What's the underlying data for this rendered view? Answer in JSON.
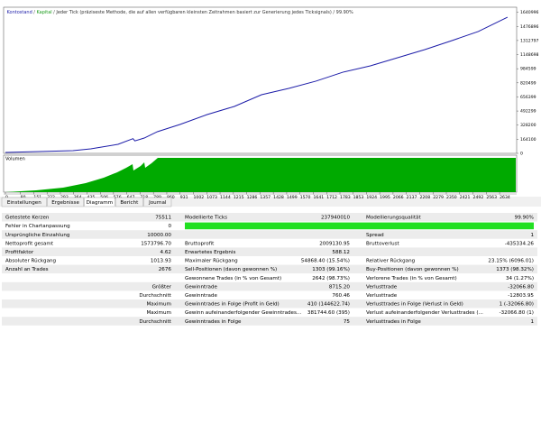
{
  "chart_data": {
    "type": "line",
    "title": "Jeder Tick (präziseste Methode, die auf allen verfügbaren kleinsten Zeitrahmen basiert zur Generierung jedes Ticksignals) / 99.90%",
    "separator": "/",
    "equity_name": "Kapital",
    "equity_color": "#1a9a1a",
    "volume_label": "Volumen",
    "x": [
      0,
      360,
      455,
      600,
      680,
      690,
      740,
      810,
      930,
      1075,
      1220,
      1365,
      1510,
      1655,
      1800,
      1945,
      2090,
      2235,
      2380,
      2520,
      2676
    ],
    "series": [
      {
        "name": "Kontostand",
        "color": "#1c1ca8",
        "values": [
          10000,
          31000,
          52000,
          105000,
          171000,
          145000,
          178000,
          252000,
          336000,
          451000,
          546000,
          682000,
          756000,
          840000,
          945000,
          1018000,
          1112000,
          1207000,
          1312000,
          1417000,
          1583796
        ]
      }
    ],
    "xlim": [
      0,
      2720
    ],
    "ylim": [
      0,
      1700000
    ],
    "xticks": [
      0,
      80,
      151,
      222,
      293,
      364,
      435,
      506,
      576,
      647,
      718,
      789,
      860,
      931,
      1002,
      1073,
      1144,
      1215,
      1286,
      1357,
      1428,
      1499,
      1570,
      1641,
      1712,
      1783,
      1853,
      1924,
      1995,
      2066,
      2137,
      2208,
      2279,
      2350,
      2421,
      2492,
      2563,
      2634
    ],
    "yticks": [
      0,
      164100,
      328200,
      492299,
      656399,
      820499,
      984599,
      1148698,
      1312797,
      1476896,
      1640996
    ]
  },
  "tabs": {
    "items": [
      "Einstellungen",
      "Ergebnisse",
      "Diagramm",
      "Bericht",
      "Journal"
    ],
    "active": 2
  },
  "table": {
    "rows": [
      [
        "Getestete Kerzen",
        "75511",
        "Modellierte Ticks",
        "237940010",
        "Modellierungsqualität",
        "99.90%"
      ],
      [
        "Fehler in Chartanpassung",
        "0",
        null,
        null,
        null,
        null
      ],
      [
        "Ursprüngliche Einzahlung",
        "10000.00",
        null,
        null,
        "Spread",
        "1"
      ],
      [
        "Nettoprofit gesamt",
        "1573796.70",
        "Bruttoprofit",
        "2009130.95",
        "Bruttoverlust",
        "-435334.26"
      ],
      [
        "Profitfaktor",
        "4.62",
        "Erwartetes Ergebnis",
        "588.12",
        null,
        null
      ],
      [
        "Absoluter Rückgang",
        "1013.93",
        "Maximaler Rückgang",
        "54868.40 (15.54%)",
        "Relativer Rückgang",
        "23.15% (6096.01)"
      ],
      [
        "Anzahl an Trades",
        "2676",
        "Sell-Positionen (davon gewonnen %)",
        "1303 (99.16%)",
        "Buy-Positionen (davon gewonnen %)",
        "1373 (98.32%)"
      ],
      [
        null,
        null,
        "Gewonnene Trades (in % von Gesamt)",
        "2642 (98.73%)",
        "Verlorene Trades (in % von Gesamt)",
        "34 (1.27%)"
      ],
      [
        null,
        "Größter",
        "Gewinntrade",
        "8715.20",
        "Verlusttrade",
        "-32066.80"
      ],
      [
        null,
        "Durchschnitt",
        "Gewinntrade",
        "760.46",
        "Verlusttrade",
        "-12803.95"
      ],
      [
        null,
        "Maximum",
        "Gewinntrades in Folge (Profit in Geld)",
        "410 (144622.74)",
        "Verlusttrades in Folge (Verlust in Geld)",
        "1 (-32066.80)"
      ],
      [
        null,
        "Maximum",
        "Gewinn aufeinanderfolgender Gewinntrades...",
        "381744.60 (395)",
        "Verlust aufeinanderfolgender Verlusttrades (...",
        "-32066.80 (1)"
      ],
      [
        null,
        "Durchschnitt",
        "Gewinntrades in Folge",
        "75",
        "Verlusttrades in Folge",
        "1"
      ]
    ]
  }
}
